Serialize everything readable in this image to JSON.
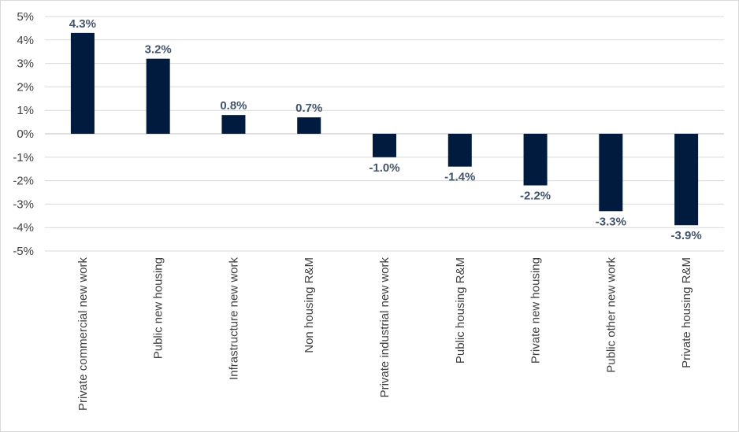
{
  "chart_data": {
    "type": "bar",
    "categories": [
      "Private commercial new work",
      "Public new housing",
      "Infrastructure new work",
      "Non housing R&M",
      "Private industrial new work",
      "Public housing R&M",
      "Private new housing",
      "Public other new work",
      "Private housing R&M"
    ],
    "values": [
      4.3,
      3.2,
      0.8,
      0.7,
      -1.0,
      -1.4,
      -2.2,
      -3.3,
      -3.9
    ],
    "data_labels": [
      "4.3%",
      "3.2%",
      "0.8%",
      "0.7%",
      "-1.0%",
      "-1.4%",
      "-2.2%",
      "-3.3%",
      "-3.9%"
    ],
    "y_ticks": [
      5,
      4,
      3,
      2,
      1,
      0,
      -1,
      -2,
      -3,
      -4,
      -5
    ],
    "y_tick_labels": [
      "5%",
      "4%",
      "3%",
      "2%",
      "1%",
      "0%",
      "-1%",
      "-2%",
      "-3%",
      "-4%",
      "-5%"
    ],
    "ylim": [
      -5,
      5
    ],
    "grid": true,
    "legend": "none",
    "title": "",
    "xlabel": "",
    "ylabel": "",
    "bar_color": "#001b3d",
    "label_color": "#44546a"
  }
}
